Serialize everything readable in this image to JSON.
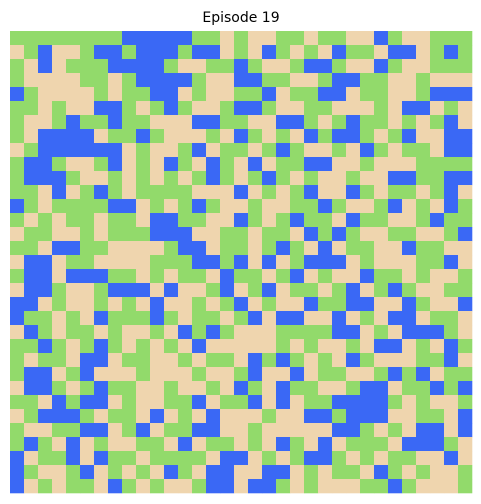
{
  "title": "Episode 19",
  "colors": [
    "#efd5ae",
    "#92da6b",
    "#3a68f5"
  ],
  "grid": [
    [
      1,
      1,
      1,
      1,
      1,
      1,
      1,
      1,
      2,
      2,
      2,
      2,
      2,
      1,
      1,
      0,
      1,
      0,
      0,
      1,
      1,
      0,
      1,
      1,
      0,
      0,
      2,
      1,
      0,
      0,
      1,
      1,
      1
    ],
    [
      0,
      1,
      2,
      0,
      0,
      1,
      2,
      2,
      1,
      2,
      2,
      2,
      1,
      2,
      2,
      0,
      1,
      0,
      2,
      1,
      0,
      1,
      0,
      2,
      1,
      1,
      0,
      2,
      2,
      0,
      1,
      2,
      1
    ],
    [
      1,
      0,
      2,
      0,
      1,
      1,
      1,
      2,
      2,
      2,
      2,
      1,
      0,
      0,
      1,
      1,
      2,
      1,
      0,
      0,
      1,
      2,
      2,
      1,
      0,
      0,
      2,
      1,
      0,
      0,
      1,
      1,
      1
    ],
    [
      1,
      0,
      0,
      0,
      0,
      1,
      1,
      0,
      1,
      2,
      2,
      2,
      2,
      1,
      0,
      0,
      2,
      2,
      1,
      1,
      0,
      0,
      1,
      2,
      2,
      1,
      1,
      0,
      0,
      1,
      0,
      0,
      0
    ],
    [
      2,
      1,
      0,
      0,
      0,
      0,
      1,
      0,
      1,
      1,
      2,
      2,
      0,
      1,
      0,
      0,
      1,
      1,
      2,
      0,
      1,
      1,
      2,
      2,
      0,
      1,
      1,
      0,
      0,
      1,
      2,
      2,
      2
    ],
    [
      1,
      1,
      0,
      1,
      0,
      0,
      2,
      2,
      1,
      0,
      1,
      2,
      1,
      0,
      0,
      1,
      2,
      2,
      1,
      0,
      0,
      1,
      1,
      0,
      0,
      0,
      1,
      0,
      2,
      2,
      0,
      1,
      0
    ],
    [
      1,
      0,
      0,
      1,
      2,
      1,
      1,
      2,
      1,
      1,
      0,
      0,
      0,
      2,
      2,
      1,
      1,
      0,
      0,
      2,
      2,
      1,
      0,
      1,
      2,
      1,
      1,
      0,
      1,
      0,
      1,
      2,
      0
    ],
    [
      1,
      0,
      2,
      2,
      2,
      2,
      0,
      1,
      1,
      2,
      1,
      0,
      0,
      0,
      1,
      0,
      2,
      1,
      0,
      1,
      0,
      2,
      1,
      2,
      2,
      1,
      0,
      1,
      2,
      0,
      0,
      2,
      2
    ],
    [
      0,
      1,
      2,
      2,
      2,
      2,
      2,
      2,
      0,
      1,
      0,
      0,
      1,
      2,
      0,
      1,
      1,
      0,
      1,
      2,
      1,
      0,
      0,
      1,
      0,
      2,
      1,
      0,
      1,
      1,
      0,
      2,
      2
    ],
    [
      1,
      2,
      2,
      1,
      0,
      0,
      1,
      2,
      0,
      1,
      0,
      2,
      1,
      0,
      2,
      1,
      0,
      2,
      0,
      1,
      1,
      2,
      2,
      0,
      0,
      1,
      0,
      0,
      0,
      1,
      1,
      1,
      1
    ],
    [
      1,
      2,
      2,
      2,
      1,
      0,
      0,
      1,
      0,
      1,
      0,
      1,
      0,
      1,
      2,
      1,
      0,
      1,
      2,
      1,
      0,
      1,
      0,
      0,
      1,
      0,
      0,
      2,
      2,
      1,
      1,
      2,
      2
    ],
    [
      1,
      1,
      0,
      2,
      0,
      1,
      2,
      1,
      0,
      1,
      1,
      1,
      1,
      0,
      0,
      0,
      2,
      0,
      1,
      0,
      1,
      2,
      0,
      0,
      2,
      1,
      0,
      1,
      1,
      0,
      1,
      2,
      0
    ],
    [
      2,
      1,
      0,
      1,
      1,
      1,
      1,
      2,
      2,
      0,
      1,
      0,
      1,
      2,
      1,
      0,
      0,
      1,
      0,
      0,
      1,
      1,
      2,
      1,
      0,
      0,
      1,
      2,
      0,
      1,
      0,
      2,
      1
    ],
    [
      1,
      0,
      1,
      0,
      1,
      1,
      0,
      1,
      1,
      0,
      2,
      2,
      1,
      1,
      0,
      0,
      2,
      1,
      0,
      1,
      2,
      1,
      1,
      0,
      2,
      1,
      1,
      0,
      0,
      1,
      2,
      1,
      1
    ],
    [
      0,
      1,
      1,
      0,
      0,
      1,
      0,
      1,
      1,
      1,
      2,
      2,
      2,
      0,
      0,
      1,
      1,
      0,
      1,
      1,
      0,
      2,
      1,
      2,
      1,
      0,
      0,
      1,
      1,
      0,
      0,
      1,
      2
    ],
    [
      1,
      1,
      0,
      2,
      2,
      1,
      1,
      0,
      0,
      0,
      0,
      1,
      2,
      2,
      0,
      1,
      1,
      0,
      1,
      2,
      1,
      0,
      2,
      0,
      1,
      1,
      0,
      0,
      2,
      1,
      1,
      0,
      0
    ],
    [
      0,
      2,
      2,
      0,
      1,
      1,
      0,
      0,
      0,
      0,
      1,
      1,
      1,
      2,
      2,
      1,
      2,
      0,
      2,
      0,
      1,
      2,
      2,
      2,
      0,
      1,
      0,
      0,
      0,
      1,
      1,
      2,
      0
    ],
    [
      1,
      2,
      2,
      0,
      2,
      2,
      2,
      1,
      1,
      0,
      1,
      0,
      1,
      1,
      0,
      2,
      1,
      1,
      0,
      1,
      2,
      0,
      1,
      0,
      0,
      2,
      1,
      1,
      0,
      1,
      0,
      0,
      1
    ],
    [
      0,
      2,
      2,
      1,
      0,
      0,
      1,
      2,
      2,
      2,
      0,
      2,
      0,
      0,
      1,
      2,
      0,
      1,
      2,
      0,
      1,
      1,
      0,
      1,
      2,
      0,
      1,
      2,
      1,
      0,
      0,
      1,
      1
    ],
    [
      2,
      2,
      0,
      1,
      0,
      0,
      1,
      0,
      1,
      0,
      2,
      0,
      0,
      1,
      0,
      1,
      2,
      0,
      1,
      0,
      0,
      2,
      1,
      1,
      2,
      2,
      0,
      0,
      2,
      1,
      0,
      0,
      2
    ],
    [
      2,
      1,
      1,
      0,
      1,
      0,
      2,
      1,
      1,
      1,
      2,
      1,
      0,
      1,
      1,
      0,
      1,
      2,
      0,
      2,
      2,
      0,
      0,
      2,
      0,
      1,
      0,
      2,
      2,
      0,
      1,
      1,
      0
    ],
    [
      0,
      2,
      1,
      0,
      1,
      1,
      0,
      1,
      0,
      0,
      1,
      0,
      2,
      1,
      2,
      1,
      0,
      0,
      0,
      1,
      1,
      1,
      1,
      2,
      2,
      0,
      1,
      0,
      2,
      2,
      2,
      1,
      0
    ],
    [
      1,
      1,
      2,
      1,
      0,
      1,
      2,
      1,
      0,
      1,
      0,
      1,
      0,
      2,
      0,
      0,
      0,
      0,
      0,
      1,
      0,
      1,
      0,
      0,
      1,
      0,
      2,
      2,
      0,
      1,
      0,
      2,
      1
    ],
    [
      1,
      0,
      1,
      1,
      0,
      2,
      2,
      0,
      1,
      1,
      0,
      0,
      1,
      0,
      1,
      1,
      0,
      2,
      1,
      2,
      1,
      0,
      1,
      0,
      2,
      1,
      0,
      0,
      0,
      1,
      1,
      2,
      0
    ],
    [
      1,
      2,
      2,
      0,
      1,
      2,
      0,
      0,
      0,
      1,
      0,
      0,
      0,
      1,
      0,
      0,
      1,
      2,
      0,
      0,
      2,
      0,
      1,
      1,
      0,
      0,
      1,
      2,
      1,
      2,
      0,
      1,
      1
    ],
    [
      0,
      2,
      2,
      1,
      0,
      1,
      2,
      1,
      1,
      0,
      0,
      1,
      0,
      0,
      1,
      0,
      2,
      1,
      0,
      2,
      1,
      1,
      0,
      0,
      1,
      2,
      2,
      0,
      1,
      1,
      2,
      1,
      2
    ],
    [
      1,
      1,
      0,
      2,
      1,
      2,
      2,
      0,
      1,
      0,
      0,
      1,
      1,
      2,
      0,
      1,
      1,
      2,
      0,
      2,
      0,
      1,
      1,
      2,
      2,
      2,
      2,
      1,
      0,
      1,
      0,
      0,
      1
    ],
    [
      0,
      1,
      2,
      2,
      2,
      1,
      0,
      1,
      1,
      0,
      2,
      0,
      1,
      0,
      2,
      0,
      0,
      0,
      1,
      0,
      0,
      2,
      2,
      1,
      2,
      2,
      2,
      0,
      0,
      1,
      1,
      0,
      2
    ],
    [
      1,
      0,
      0,
      1,
      1,
      2,
      2,
      0,
      1,
      2,
      0,
      1,
      1,
      2,
      2,
      0,
      0,
      1,
      0,
      0,
      0,
      0,
      0,
      2,
      2,
      1,
      0,
      1,
      0,
      2,
      2,
      0,
      2
    ],
    [
      1,
      2,
      1,
      0,
      2,
      0,
      1,
      0,
      0,
      1,
      1,
      0,
      2,
      0,
      1,
      1,
      0,
      1,
      0,
      2,
      1,
      0,
      2,
      0,
      1,
      1,
      1,
      0,
      2,
      2,
      2,
      1,
      0
    ],
    [
      2,
      0,
      1,
      1,
      2,
      0,
      2,
      1,
      1,
      0,
      1,
      1,
      1,
      1,
      0,
      2,
      2,
      0,
      1,
      0,
      1,
      2,
      2,
      1,
      0,
      1,
      0,
      1,
      1,
      0,
      0,
      2,
      0
    ],
    [
      2,
      1,
      0,
      0,
      1,
      2,
      0,
      1,
      0,
      1,
      0,
      2,
      1,
      0,
      2,
      2,
      0,
      0,
      2,
      2,
      0,
      1,
      0,
      1,
      1,
      0,
      2,
      1,
      0,
      1,
      0,
      0,
      1
    ],
    [
      2,
      0,
      1,
      0,
      1,
      1,
      0,
      2,
      1,
      0,
      1,
      0,
      0,
      1,
      2,
      2,
      0,
      2,
      2,
      1,
      0,
      1,
      0,
      0,
      0,
      1,
      1,
      2,
      1,
      0,
      0,
      0,
      1
    ]
  ]
}
